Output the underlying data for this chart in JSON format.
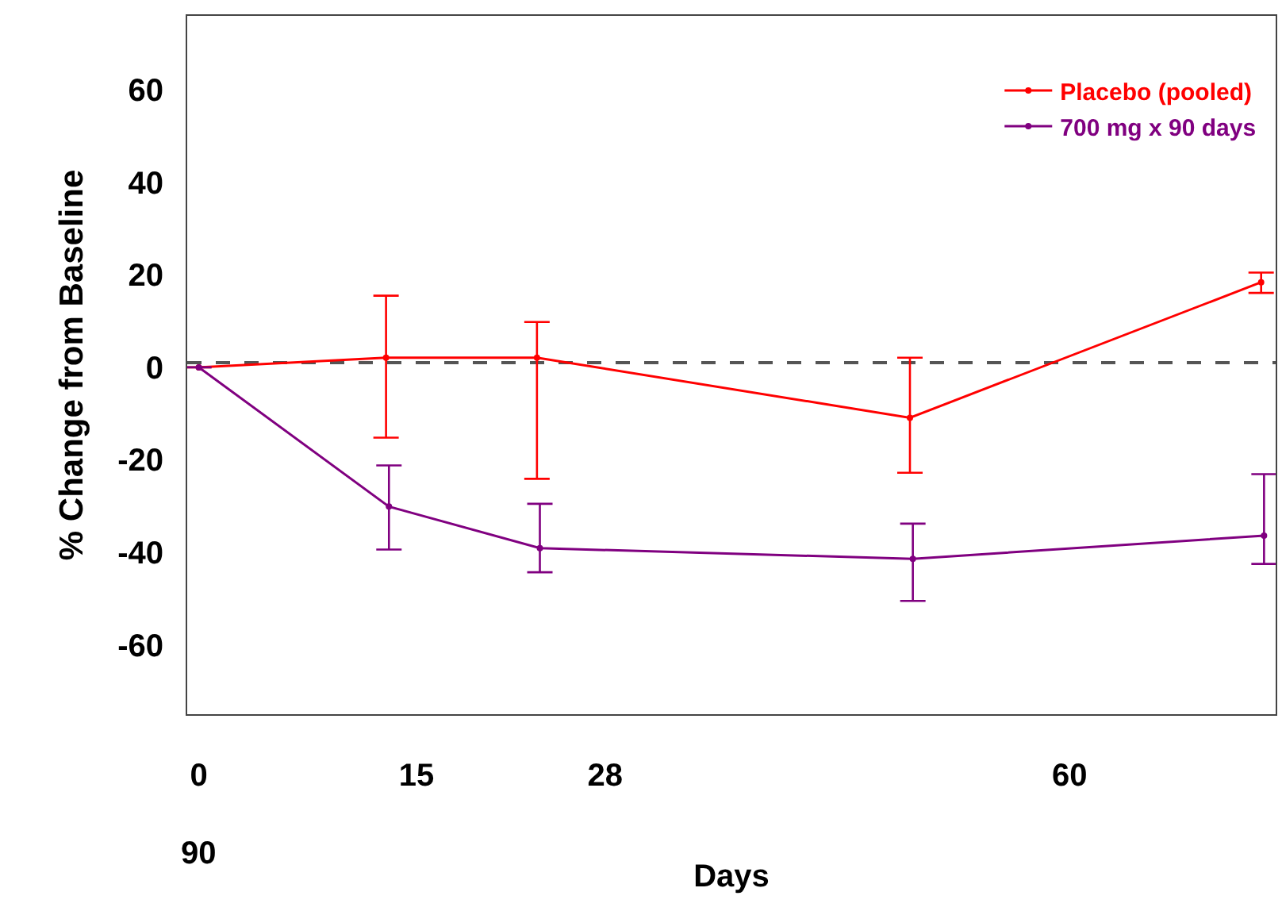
{
  "chart_data": {
    "type": "line",
    "xlabel": "Days",
    "ylabel": "% Change from Baseline",
    "xlim": [
      -0.8,
      74.2
    ],
    "xticks": [
      0,
      15,
      28,
      60
    ],
    "ylim": [
      -75,
      76
    ],
    "yticks": [
      -60,
      -40,
      -20,
      0,
      20,
      40,
      60
    ],
    "series": [
      {
        "name": "Placebo (pooled)",
        "color": "#ff0000",
        "x": [
          0,
          12.9,
          23.3,
          49.0,
          73.2
        ],
        "values": [
          0,
          2.1,
          2.1,
          -10.9,
          18.4
        ],
        "errors": [
          null,
          [
            -15.2,
            15.5
          ],
          [
            -24.1,
            9.8
          ],
          [
            -22.8,
            2.1
          ],
          [
            16.1,
            20.5
          ]
        ]
      },
      {
        "name": "700 mg x 90 days",
        "color": "#800080",
        "x": [
          0,
          13.1,
          23.5,
          49.2,
          73.4
        ],
        "values": [
          0,
          -30.1,
          -39.1,
          -41.4,
          -36.4
        ],
        "errors": [
          null,
          [
            -39.4,
            -21.2
          ],
          [
            -44.3,
            -29.5
          ],
          [
            -50.5,
            -33.8
          ],
          [
            -42.5,
            -23.1
          ]
        ]
      }
    ],
    "ref_lines": [
      {
        "axis": "y",
        "value": 1,
        "color": "#555555",
        "line_style": "dashed"
      }
    ],
    "annotations": [
      "90"
    ],
    "marker": "circle",
    "line_style": "solid",
    "grid": false,
    "legend": "top right"
  }
}
